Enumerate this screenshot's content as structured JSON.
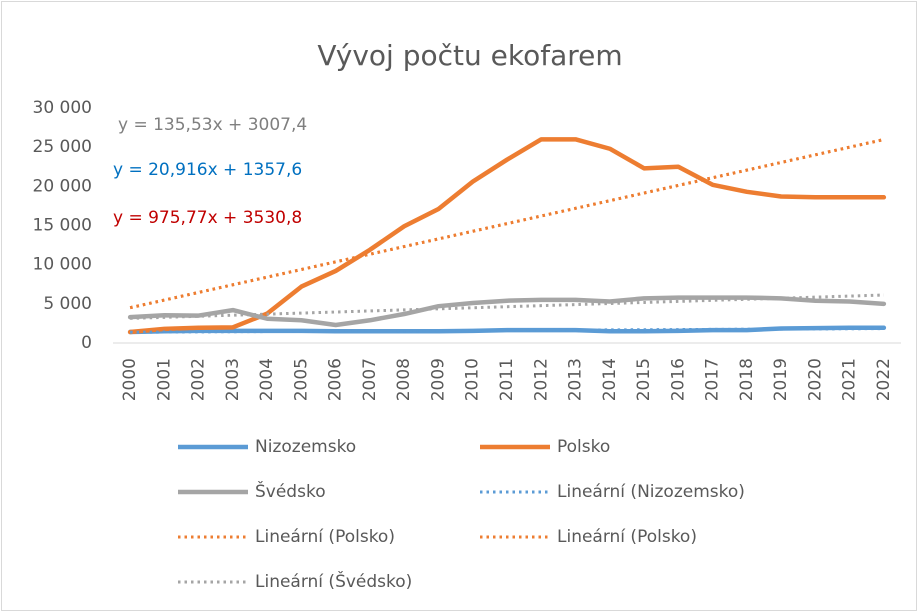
{
  "chart_data": {
    "type": "line",
    "title": "Vývoj počtu ekofarem",
    "categories": [
      "2000",
      "2001",
      "2002",
      "2003",
      "2004",
      "2005",
      "2006",
      "2007",
      "2008",
      "2009",
      "2010",
      "2011",
      "2012",
      "2013",
      "2014",
      "2015",
      "2016",
      "2017",
      "2018",
      "2019",
      "2020",
      "2021",
      "2022"
    ],
    "series": [
      {
        "name": "Nizozemsko",
        "color": "#5b9bd5",
        "dotted": false,
        "values": [
          1400,
          1500,
          1550,
          1550,
          1550,
          1550,
          1500,
          1500,
          1500,
          1500,
          1550,
          1650,
          1650,
          1650,
          1500,
          1500,
          1550,
          1650,
          1650,
          1850,
          1900,
          1950,
          1950
        ]
      },
      {
        "name": "Polsko",
        "color": "#ed7d31",
        "dotted": false,
        "values": [
          1400,
          1800,
          1950,
          2000,
          3750,
          7200,
          9200,
          11900,
          14900,
          17100,
          20600,
          23400,
          26000,
          26000,
          24800,
          22300,
          22500,
          20200,
          19300,
          18700,
          18600,
          18600,
          18600
        ]
      },
      {
        "name": "Švédsko",
        "color": "#a5a5a5",
        "dotted": false,
        "values": [
          3300,
          3550,
          3500,
          4200,
          3100,
          2900,
          2300,
          2900,
          3700,
          4700,
          5100,
          5400,
          5500,
          5500,
          5300,
          5700,
          5800,
          5800,
          5800,
          5700,
          5400,
          5300,
          5000
        ]
      },
      {
        "name": "Lineární (Nizozemsko)",
        "color": "#5b9bd5",
        "dotted": true,
        "values": [
          1379,
          1399,
          1420,
          1441,
          1462,
          1483,
          1504,
          1525,
          1546,
          1567,
          1588,
          1609,
          1630,
          1650,
          1671,
          1692,
          1713,
          1734,
          1755,
          1776,
          1797,
          1818,
          1839
        ]
      },
      {
        "name": "Lineární (Polsko)",
        "color": "#ed7d31",
        "dotted": true,
        "values": [
          4507,
          5482,
          6458,
          7434,
          8410,
          9385,
          10361,
          11337,
          12313,
          13289,
          14264,
          15240,
          16216,
          17192,
          18167,
          19143,
          20119,
          21095,
          22070,
          23046,
          24022,
          24998,
          25974
        ]
      },
      {
        "name": "Lineární (Polsko)",
        "color": "#ed7d31",
        "dotted": true,
        "values": [
          4507,
          5482,
          6458,
          7434,
          8410,
          9385,
          10361,
          11337,
          12313,
          13289,
          14264,
          15240,
          16216,
          17192,
          18167,
          19143,
          20119,
          21095,
          22070,
          23046,
          24022,
          24998,
          25974
        ]
      },
      {
        "name": "Lineární (Švédsko)",
        "color": "#a5a5a5",
        "dotted": true,
        "values": [
          3143,
          3278,
          3414,
          3550,
          3685,
          3821,
          3956,
          4092,
          4227,
          4363,
          4498,
          4634,
          4769,
          4905,
          5040,
          5176,
          5311,
          5447,
          5582,
          5718,
          5854,
          5989,
          6125
        ]
      }
    ],
    "annotations": [
      {
        "text": "y = 135,53x + 3007,4",
        "color": "#7f7f7f"
      },
      {
        "text": "y = 20,916x + 1357,6",
        "color": "#0070c0"
      },
      {
        "text": "y = 975,77x + 3530,8",
        "color": "#c00000"
      }
    ],
    "ylim": [
      0,
      30000
    ],
    "yticks": [
      0,
      {
        "value": 5000,
        "label": "5 000"
      },
      {
        "value": 10000,
        "label": "10 000"
      },
      {
        "value": 15000,
        "label": "15 000"
      },
      {
        "value": 20000,
        "label": "20 000"
      },
      {
        "value": 25000,
        "label": "25 000"
      },
      {
        "value": 30000,
        "label": "30 000"
      }
    ],
    "grid": false
  }
}
